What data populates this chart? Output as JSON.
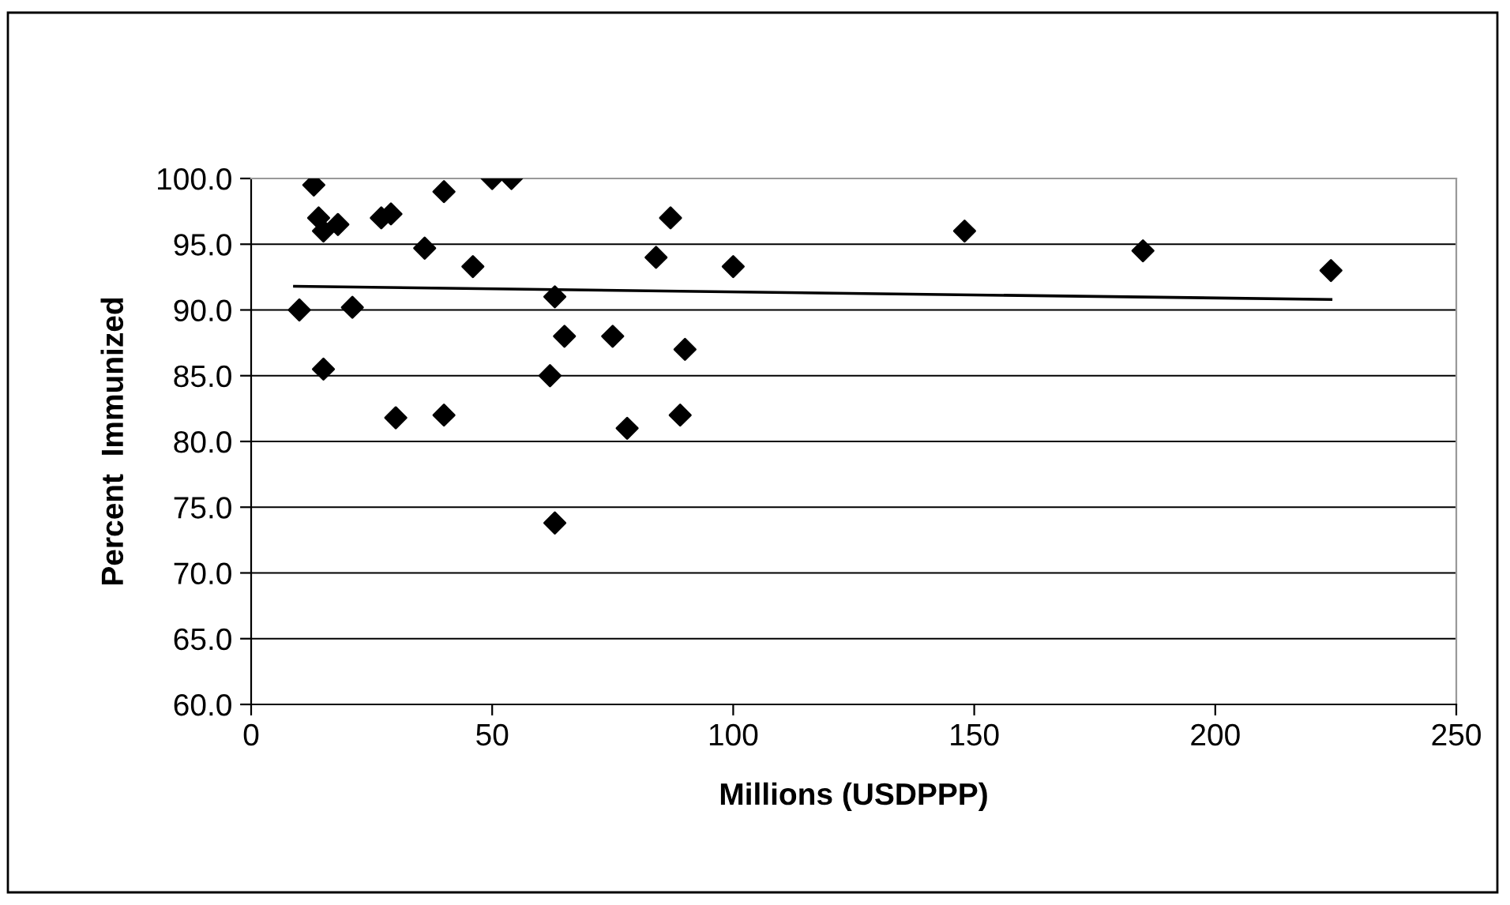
{
  "chart_data": {
    "type": "scatter",
    "xlabel": "Millions (USDPPP)",
    "ylabel": "Percent  Immunized",
    "series": [
      {
        "color": "#000000",
        "marker": "diamond",
        "x": [
          10,
          13,
          14,
          15,
          15,
          18,
          21,
          27,
          29,
          30,
          36,
          40,
          40,
          46,
          50,
          54,
          62,
          63,
          63,
          65,
          75,
          78,
          84,
          87,
          89,
          90,
          100,
          148,
          185,
          224
        ],
        "values": [
          90.0,
          99.5,
          97.0,
          96.0,
          85.5,
          96.5,
          90.2,
          97.0,
          97.3,
          81.8,
          94.7,
          99.0,
          82.0,
          93.3,
          100.0,
          100.0,
          85.0,
          91.0,
          73.8,
          88.0,
          88.0,
          81.0,
          94.0,
          97.0,
          82.0,
          87.0,
          93.3,
          96.0,
          94.5,
          93.0
        ]
      },
      {
        "type": "line",
        "color": "#000000",
        "marker": "none",
        "x": [
          9,
          224
        ],
        "values": [
          91.8,
          90.8
        ]
      }
    ],
    "xlim": [
      0,
      250
    ],
    "xticks": [
      0,
      50,
      100,
      150,
      200,
      250
    ],
    "ylim": [
      60,
      100
    ],
    "yticks": [
      {
        "value": 60,
        "label": "60.0"
      },
      {
        "value": 65,
        "label": "65.0"
      },
      {
        "value": 70,
        "label": "70.0"
      },
      {
        "value": 75,
        "label": "75.0"
      },
      {
        "value": 80,
        "label": "80.0"
      },
      {
        "value": 85,
        "label": "85.0"
      },
      {
        "value": 90,
        "label": "90.0"
      },
      {
        "value": 95,
        "label": "95.0"
      },
      {
        "value": 100,
        "label": "100.0"
      }
    ],
    "grid": "y",
    "legend": false
  }
}
